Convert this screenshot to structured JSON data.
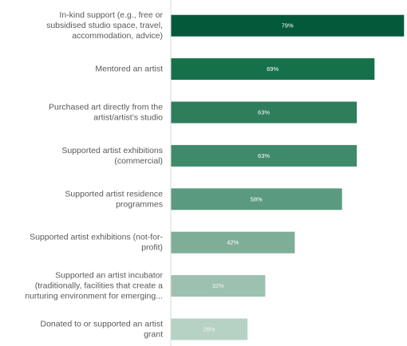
{
  "chart_data": {
    "type": "bar",
    "orientation": "horizontal",
    "title": "",
    "xlabel": "",
    "ylabel": "",
    "xlim": [
      0,
      100
    ],
    "grid": false,
    "legend": "none",
    "categories": [
      "In-kind support (e.g., free or subsidised studio space, travel, accommodation, advice)",
      "Mentored an artist",
      "Purchased art directly from the artist/artist’s studio",
      "Supported artist exhibitions (commercial)",
      "Supported artist residence programmes",
      "Supported artist exhibitions (not-for-profit)",
      "Supported an artist incubator (traditionally, facilities that create a nurturing environment for emerging...",
      "Donated to or supported an artist grant"
    ],
    "category_lines": [
      [
        "In-kind support (e.g., free or",
        "subsidised studio space, travel,",
        "accommodation, advice)"
      ],
      [
        "Mentored an artist"
      ],
      [
        "Purchased art directly from the",
        "artist/artist’s studio"
      ],
      [
        "Supported artist exhibitions",
        "(commercial)"
      ],
      [
        "Supported artist residence",
        "programmes"
      ],
      [
        "Supported artist exhibitions (not-for-",
        "profit)"
      ],
      [
        "Supported an artist incubator",
        "(traditionally, facilities that create a",
        "nurturing environment for emerging..."
      ],
      [
        "Donated to or supported an artist",
        "grant"
      ]
    ],
    "values": [
      79,
      69,
      63,
      63,
      58,
      42,
      32,
      26
    ],
    "data_labels": [
      "79%",
      "69%",
      "63%",
      "63%",
      "58%",
      "42%",
      "32%",
      "26%"
    ],
    "colors": [
      "#035a3b",
      "#16704a",
      "#2e7d5b",
      "#3e8a6a",
      "#5a9a80",
      "#7fae98",
      "#9dc1b0",
      "#b6d2c4"
    ],
    "label_colors": [
      "#ffffff",
      "#ffffff",
      "#ffffff",
      "#ffffff",
      "#ffffff",
      "#ffffff",
      "#eef4f1",
      "#f2f7f4"
    ],
    "axis_color": "#d9d9d9"
  }
}
